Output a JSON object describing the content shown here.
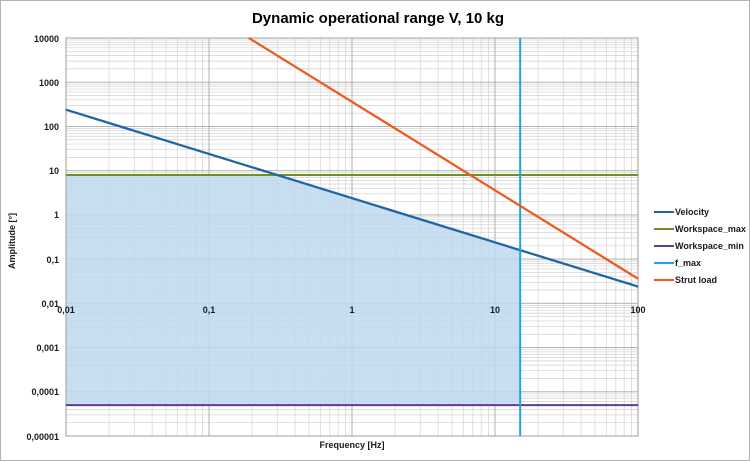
{
  "title": "Dynamic operational range V, 10 kg",
  "axes": {
    "x_label": "Frequency [Hz]",
    "y_label": "Amplitude [°]"
  },
  "legend": {
    "items": [
      {
        "label": "Velocity",
        "color": "#2265a5"
      },
      {
        "label": "Workspace_max",
        "color": "#6f9124"
      },
      {
        "label": "Workspace_min",
        "color": "#5f3b96"
      },
      {
        "label": "f_max",
        "color": "#1fa5d8"
      },
      {
        "label": "Strut load",
        "color": "#ee5a20"
      }
    ]
  },
  "chart_data": {
    "type": "line",
    "title": "Dynamic operational range V, 10 kg",
    "xlabel": "Frequency [Hz]",
    "ylabel": "Amplitude [°]",
    "x_scale": "log",
    "y_scale": "log",
    "xlim": [
      0.01,
      100
    ],
    "ylim": [
      1e-05,
      10000
    ],
    "x_ticks": [
      "0,01",
      "0,1",
      "1",
      "10",
      "100"
    ],
    "y_ticks": [
      "10000",
      "1000",
      "100",
      "10",
      "1",
      "0,1",
      "0,01",
      "0,001",
      "0,0001",
      "0,00001"
    ],
    "grid": "major and minor log gridlines, both axes",
    "legend_position": "right",
    "series": [
      {
        "name": "Velocity",
        "color": "#2265a5",
        "style": "solid",
        "points": [
          [
            0.01,
            239
          ],
          [
            100,
            0.0239
          ]
        ],
        "note": "slope -1 in log-log (amplitude ~ 2.39/f)"
      },
      {
        "name": "Workspace_max",
        "color": "#6f9124",
        "style": "solid",
        "points": [
          [
            0.01,
            8
          ],
          [
            100,
            8
          ]
        ],
        "note": "horizontal limit at 8 deg"
      },
      {
        "name": "Workspace_min",
        "color": "#5f3b96",
        "style": "solid",
        "points": [
          [
            0.01,
            5e-05
          ],
          [
            100,
            5e-05
          ]
        ],
        "note": "horizontal limit at 5e-5 deg"
      },
      {
        "name": "f_max",
        "color": "#1fa5d8",
        "style": "solid",
        "points": [
          [
            15,
            1e-05
          ],
          [
            15,
            10000
          ]
        ],
        "note": "vertical limit at 15 Hz"
      },
      {
        "name": "Strut load",
        "color": "#ee5a20",
        "style": "solid",
        "points": [
          [
            0.19,
            10000
          ],
          [
            100,
            0.036
          ]
        ],
        "note": "slope -2 in log-log (amplitude ~ 360/f^2)"
      }
    ],
    "shaded_region": {
      "color": "#bed8ee",
      "opacity": 0.85,
      "description": "operational range: bounded above by Workspace_max then Velocity line, right by f_max, below by Workspace_min, left by x = 0.01 Hz"
    }
  }
}
